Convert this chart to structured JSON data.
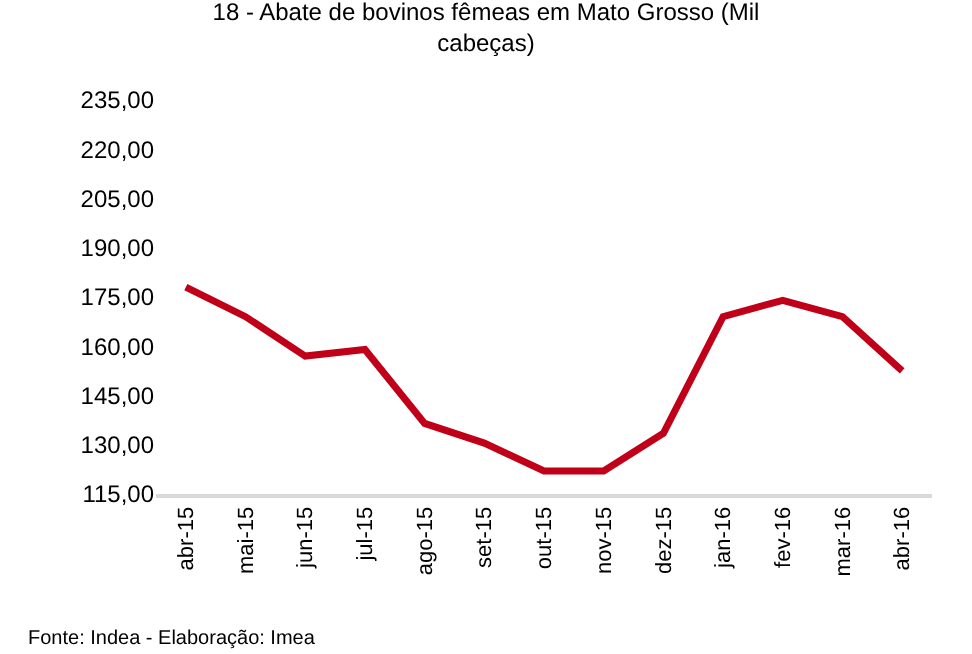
{
  "chart_data": {
    "type": "line",
    "title": "18 - Abate de bovinos fêmeas em Mato Grosso (Mil cabeças)",
    "categories": [
      "abr-15",
      "mai-15",
      "jun-15",
      "jul-15",
      "ago-15",
      "set-15",
      "out-15",
      "nov-15",
      "dez-15",
      "jan-16",
      "fev-16",
      "mar-16",
      "abr-16"
    ],
    "series": [
      {
        "color": "#c00018",
        "values": [
          178,
          169,
          157,
          159,
          136.5,
          130.5,
          122,
          122,
          133.5,
          169,
          174,
          169,
          152.5
        ]
      }
    ],
    "ylim": [
      115,
      235
    ],
    "yticks": [
      {
        "value": 115,
        "label": "115,00"
      },
      {
        "value": 130,
        "label": "130,00"
      },
      {
        "value": 145,
        "label": "145,00"
      },
      {
        "value": 160,
        "label": "160,00"
      },
      {
        "value": 175,
        "label": "175,00"
      },
      {
        "value": 190,
        "label": "190,00"
      },
      {
        "value": 205,
        "label": "205,00"
      },
      {
        "value": 220,
        "label": "220,00"
      },
      {
        "value": 235,
        "label": "235,00"
      }
    ],
    "grid": false,
    "marker": "none",
    "line_style": "solid",
    "annotations": [
      "Fonte: Indea - Elaboração: Imea"
    ]
  }
}
